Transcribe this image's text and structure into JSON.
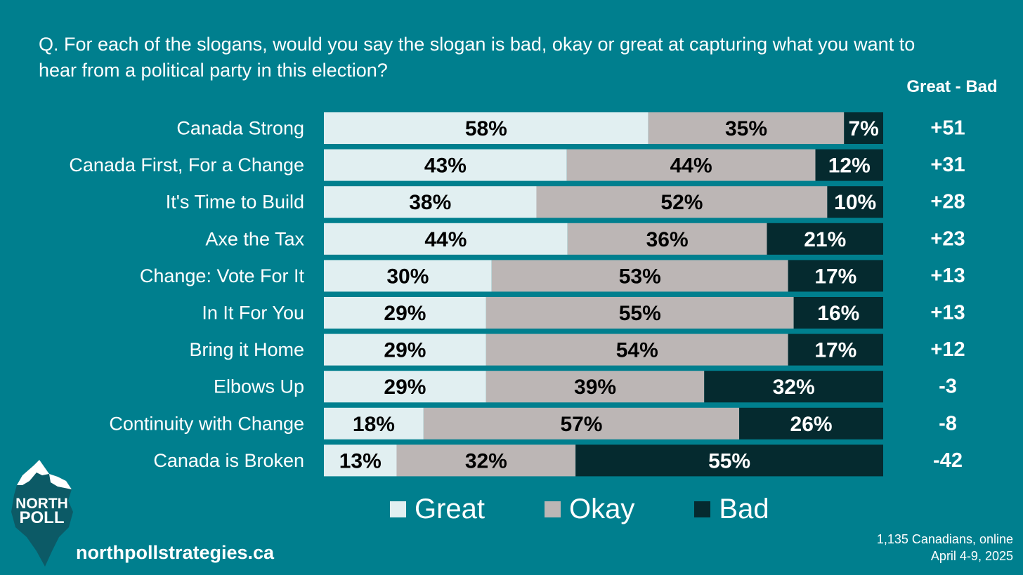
{
  "question": "Q. For each of the slogans, would you say the slogan is bad, okay or great at capturing what you want to hear from a political party in this election?",
  "diff_header": "Great - Bad",
  "colors": {
    "background": "#007f8e",
    "great": "#e1eff1",
    "okay": "#bcb6b5",
    "bad": "#052a2f"
  },
  "chart_data": {
    "type": "bar",
    "orientation": "horizontal",
    "stacked": true,
    "categories": [
      "Canada Strong",
      "Canada First, For a Change",
      "It's Time to Build",
      "Axe the Tax",
      "Change: Vote For It",
      "In It For You",
      "Bring it Home",
      "Elbows Up",
      "Continuity with Change",
      "Canada is Broken"
    ],
    "series": [
      {
        "name": "Great",
        "values": [
          58,
          43,
          38,
          44,
          30,
          29,
          29,
          29,
          18,
          13
        ],
        "labels": [
          "58%",
          "43%",
          "38%",
          "44%",
          "30%",
          "29%",
          "29%",
          "29%",
          "18%",
          "13%"
        ]
      },
      {
        "name": "Okay",
        "values": [
          35,
          44,
          52,
          36,
          53,
          55,
          54,
          39,
          57,
          32
        ],
        "labels": [
          "35%",
          "44%",
          "52%",
          "36%",
          "53%",
          "55%",
          "54%",
          "39%",
          "57%",
          "32%"
        ]
      },
      {
        "name": "Bad",
        "values": [
          7,
          12,
          10,
          21,
          17,
          16,
          17,
          32,
          26,
          55
        ],
        "labels": [
          "7%",
          "12%",
          "10%",
          "21%",
          "17%",
          "16%",
          "17%",
          "32%",
          "26%",
          "55%"
        ]
      }
    ],
    "net_labels": [
      "+51",
      "+31",
      "+28",
      "+23",
      "+13",
      "+13",
      "+12",
      "-3",
      "-8",
      "-42"
    ],
    "legend_position": "bottom",
    "grid": false
  },
  "legend": [
    {
      "label": "Great"
    },
    {
      "label": "Okay"
    },
    {
      "label": "Bad"
    }
  ],
  "logo": {
    "line1": "NORTH",
    "line2": "POLL"
  },
  "website": "northpollstrategies.ca",
  "footnote": {
    "line1": "1,135 Canadians, online",
    "line2": "April 4-9, 2025"
  }
}
